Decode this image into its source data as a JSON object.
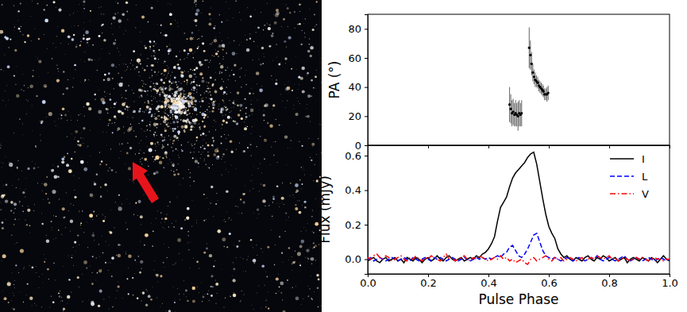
{
  "chart_data": [
    {
      "type": "scatter",
      "ylabel": "PA (°)",
      "color": "#000000",
      "marker": "circle",
      "x": [
        0.47,
        0.474,
        0.478,
        0.482,
        0.486,
        0.49,
        0.494,
        0.498,
        0.502,
        0.506,
        0.51,
        0.535,
        0.539,
        0.543,
        0.547,
        0.551,
        0.555,
        0.559,
        0.563,
        0.567,
        0.571,
        0.575,
        0.579,
        0.582,
        0.586,
        0.59,
        0.594,
        0.598
      ],
      "values": [
        28,
        25,
        22,
        23,
        21,
        22,
        21,
        20,
        22,
        21,
        22,
        67,
        62,
        56,
        50,
        47,
        45,
        44,
        43,
        41,
        40,
        39,
        38,
        37,
        35,
        35,
        35,
        36
      ],
      "errors": [
        12,
        10,
        9,
        9,
        8,
        9,
        8,
        10,
        9,
        8,
        9,
        14,
        10,
        8,
        6,
        5,
        5,
        4,
        4,
        4,
        4,
        4,
        4,
        4,
        4,
        4,
        5,
        5
      ],
      "xlim": [
        0,
        1
      ],
      "xticks": [
        {
          "value": 0,
          "label": "0.0"
        },
        0.2,
        0.4,
        0.6,
        0.8,
        {
          "value": 1,
          "label": "1.0"
        }
      ],
      "ylim": [
        0,
        90
      ],
      "yticks": [
        0,
        20,
        40,
        60,
        80
      ],
      "tick_labels": "y"
    },
    {
      "type": "line",
      "xlabel": "Pulse Phase",
      "ylabel": "Flux (mJy)",
      "legend": "upper right",
      "x": [
        0,
        0.01,
        0.02,
        0.03,
        0.04,
        0.05,
        0.06,
        0.07,
        0.08,
        0.09,
        0.1,
        0.11,
        0.12,
        0.13,
        0.14,
        0.15,
        0.16,
        0.17,
        0.18,
        0.19,
        0.2,
        0.21,
        0.22,
        0.23,
        0.24,
        0.25,
        0.26,
        0.27,
        0.28,
        0.29,
        0.3,
        0.31,
        0.32,
        0.33,
        0.34,
        0.35,
        0.36,
        0.37,
        0.38,
        0.39,
        0.4,
        0.41,
        0.42,
        0.43,
        0.44,
        0.45,
        0.46,
        0.47,
        0.48,
        0.49,
        0.5,
        0.51,
        0.52,
        0.53,
        0.54,
        0.55,
        0.56,
        0.57,
        0.58,
        0.59,
        0.6,
        0.61,
        0.62,
        0.63,
        0.64,
        0.65,
        0.66,
        0.67,
        0.68,
        0.69,
        0.7,
        0.71,
        0.72,
        0.73,
        0.74,
        0.75,
        0.76,
        0.77,
        0.78,
        0.79,
        0.8,
        0.81,
        0.82,
        0.83,
        0.84,
        0.85,
        0.86,
        0.87,
        0.88,
        0.89,
        0.9,
        0.91,
        0.92,
        0.93,
        0.94,
        0.95,
        0.96,
        0.97,
        0.98,
        0.99,
        1
      ],
      "series": [
        {
          "name": "I",
          "color": "#000000",
          "line_style": "solid",
          "values": [
            -0.01,
            0.0,
            0.01,
            -0.01,
            -0.02,
            0.0,
            0.01,
            -0.01,
            0.0,
            0.01,
            -0.01,
            0.0,
            -0.02,
            0.01,
            0.0,
            -0.01,
            0.01,
            0.0,
            -0.02,
            0.0,
            0.01,
            -0.01,
            0.0,
            0.02,
            0.0,
            -0.01,
            0.01,
            0.02,
            0.0,
            -0.01,
            0.0,
            0.01,
            -0.01,
            0.0,
            0.01,
            0.0,
            0.02,
            0.01,
            0.03,
            0.04,
            0.06,
            0.09,
            0.13,
            0.22,
            0.3,
            0.33,
            0.36,
            0.42,
            0.47,
            0.5,
            0.52,
            0.54,
            0.56,
            0.59,
            0.61,
            0.62,
            0.55,
            0.45,
            0.35,
            0.26,
            0.19,
            0.15,
            0.12,
            0.06,
            0.03,
            0.01,
            0.02,
            0.0,
            -0.01,
            0.01,
            0.0,
            -0.01,
            0.01,
            0.02,
            0.0,
            -0.01,
            0.01,
            0.0,
            0.02,
            0.01,
            -0.01,
            0.0,
            0.01,
            -0.01,
            0.0,
            0.01,
            -0.02,
            0.0,
            0.01,
            0.0,
            -0.01,
            0.01,
            0.0,
            -0.01,
            0.01,
            0.0,
            -0.02,
            0.0,
            0.02,
            0.0,
            -0.01
          ]
        },
        {
          "name": "L",
          "color": "#0000ff",
          "line_style": "dashed",
          "values": [
            0.0,
            0.01,
            -0.01,
            0.0,
            0.01,
            0.0,
            -0.01,
            0.0,
            0.01,
            0.0,
            -0.01,
            0.0,
            0.01,
            0.0,
            -0.01,
            0.01,
            0.0,
            -0.01,
            0.0,
            0.01,
            0.0,
            -0.01,
            0.01,
            0.0,
            0.01,
            0.0,
            -0.01,
            0.0,
            0.01,
            0.0,
            -0.01,
            0.0,
            0.01,
            0.0,
            -0.01,
            0.0,
            0.01,
            0.0,
            0.01,
            0.0,
            0.01,
            0.0,
            0.01,
            0.02,
            0.01,
            0.03,
            0.04,
            0.07,
            0.08,
            0.05,
            0.02,
            0.01,
            0.03,
            0.06,
            0.1,
            0.14,
            0.15,
            0.1,
            0.05,
            0.02,
            0.01,
            0.0,
            0.01,
            0.0,
            -0.01,
            0.0,
            0.01,
            0.0,
            -0.01,
            0.0,
            0.01,
            0.0,
            -0.01,
            0.0,
            0.01,
            0.0,
            0.02,
            0.0,
            -0.01,
            0.0,
            0.01,
            0.0,
            -0.01,
            0.0,
            0.01,
            0.02,
            0.0,
            -0.01,
            0.0,
            0.01,
            0.0,
            -0.01,
            0.0,
            0.01,
            0.0,
            -0.01,
            0.0,
            0.01,
            0.0,
            -0.01,
            0.0
          ]
        },
        {
          "name": "V",
          "color": "#ff0000",
          "line_style": "dashdot",
          "values": [
            0.01,
            0.0,
            0.02,
            0.03,
            0.01,
            0.0,
            0.02,
            0.01,
            -0.01,
            0.0,
            0.01,
            0.02,
            0.0,
            -0.01,
            0.01,
            0.0,
            0.02,
            0.0,
            -0.01,
            0.01,
            0.0,
            0.02,
            0.01,
            0.0,
            -0.01,
            0.01,
            0.03,
            0.0,
            0.01,
            -0.01,
            0.0,
            0.01,
            0.02,
            0.0,
            -0.01,
            0.01,
            0.0,
            0.02,
            0.01,
            0.0,
            -0.01,
            0.0,
            0.01,
            0.0,
            0.02,
            0.0,
            0.01,
            -0.01,
            0.0,
            -0.02,
            -0.01,
            0.0,
            -0.02,
            -0.03,
            0.0,
            0.01,
            -0.01,
            0.0,
            0.01,
            0.02,
            0.0,
            -0.01,
            0.01,
            0.0,
            0.01,
            -0.01,
            0.0,
            0.01,
            0.0,
            -0.01,
            0.0,
            0.01,
            -0.01,
            0.0,
            0.01,
            0.0,
            0.02,
            0.01,
            0.0,
            0.01,
            0.02,
            0.0,
            0.01,
            -0.01,
            0.0,
            0.01,
            0.0,
            -0.01,
            0.0,
            0.01,
            0.0,
            0.01,
            0.0,
            -0.01,
            0.0,
            0.01,
            0.0,
            0.0,
            -0.01,
            0.0,
            0.0
          ]
        }
      ],
      "xlim": [
        0,
        1
      ],
      "xticks": [
        {
          "value": 0,
          "label": "0.0"
        },
        0.2,
        0.4,
        0.6,
        0.8,
        {
          "value": 1,
          "label": "1.0"
        }
      ],
      "ylim": [
        -0.085,
        0.66
      ],
      "yticks": [
        {
          "value": 0,
          "label": "0.0"
        },
        0.2,
        0.4,
        0.6
      ]
    }
  ]
}
